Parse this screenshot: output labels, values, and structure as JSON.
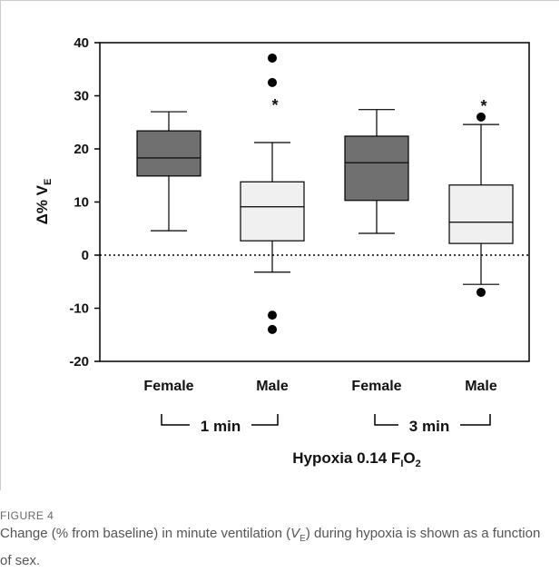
{
  "chart_data": {
    "type": "box",
    "y_label": {
      "main": "Δ% V",
      "sub": "E"
    },
    "x_title": {
      "main": "Hypoxia 0.14 F",
      "sub1": "I",
      "mid": "O",
      "sub2": "2"
    },
    "categories": [
      "Female",
      "Male",
      "Female",
      "Male"
    ],
    "groups": [
      "1 min",
      "3 min"
    ],
    "ylim": [
      -20,
      40
    ],
    "yticks": [
      -20,
      -10,
      0,
      10,
      20,
      30,
      40
    ],
    "reference_line": 0,
    "boxes": [
      {
        "color": "#707070",
        "whisker_low": 4.6,
        "q1": 14.9,
        "median": 18.3,
        "q3": 23.4,
        "whisker_high": 27.0,
        "outliers": []
      },
      {
        "color": "#f0f0f0",
        "whisker_low": -3.2,
        "q1": 2.7,
        "median": 9.1,
        "q3": 13.8,
        "whisker_high": 21.2,
        "outliers": [
          37.1,
          32.5,
          -11.3,
          -14.0
        ],
        "annotation": "*"
      },
      {
        "color": "#707070",
        "whisker_low": 4.1,
        "q1": 10.3,
        "median": 17.4,
        "q3": 22.4,
        "whisker_high": 27.4,
        "outliers": []
      },
      {
        "color": "#f0f0f0",
        "whisker_low": -5.5,
        "q1": 2.2,
        "median": 6.2,
        "q3": 13.2,
        "whisker_high": 24.6,
        "outliers": [
          26.0,
          -7.0
        ],
        "annotation": "*"
      }
    ]
  },
  "caption": {
    "label": "FIGURE 4",
    "parts": [
      "Change (% from baseline) in minute ventilation (",
      "V",
      "E",
      ") during hypoxia is shown as a function of sex."
    ]
  }
}
